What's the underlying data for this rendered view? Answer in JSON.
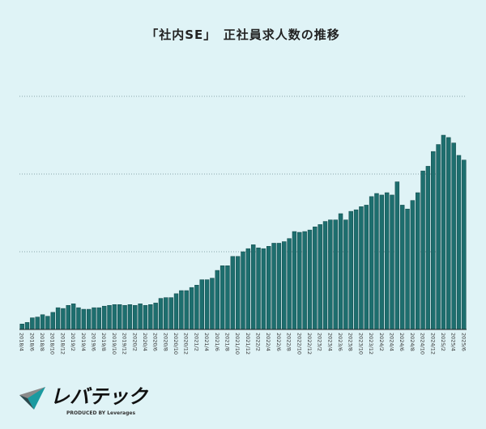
{
  "chart_data": {
    "type": "bar",
    "title": "「社内SE」　正社員求人数の推移",
    "xlabel": "",
    "ylabel": "",
    "y_tick_labels_shown": false,
    "grid": "horizontal dotted",
    "bar_color": "#1d6e6e",
    "background_color": "#dff3f6",
    "ylim": [
      0,
      3.1
    ],
    "categories": [
      "2018/4",
      "2018/5",
      "2018/6",
      "2018/7",
      "2018/8",
      "2018/9",
      "2018/10",
      "2018/11",
      "2018/12",
      "2019/1",
      "2019/2",
      "2019/3",
      "2019/4",
      "2019/5",
      "2019/6",
      "2019/7",
      "2019/8",
      "2019/9",
      "2019/10",
      "2019/11",
      "2019/12",
      "2020/1",
      "2020/2",
      "2020/3",
      "2020/4",
      "2020/5",
      "2020/6",
      "2020/7",
      "2020/8",
      "2020/9",
      "2020/10",
      "2020/11",
      "2020/12",
      "2021/1",
      "2021/2",
      "2021/3",
      "2021/4",
      "2021/5",
      "2021/6",
      "2021/7",
      "2021/8",
      "2021/9",
      "2021/10",
      "2021/11",
      "2021/12",
      "2022/1",
      "2022/2",
      "2022/3",
      "2022/4",
      "2022/5",
      "2022/6",
      "2022/7",
      "2022/8",
      "2022/9",
      "2022/10",
      "2022/11",
      "2022/12",
      "2023/1",
      "2023/2",
      "2023/3",
      "2023/4",
      "2023/5",
      "2023/6",
      "2023/7",
      "2023/8",
      "2023/9",
      "2023/10",
      "2023/11",
      "2023/12",
      "2024/1",
      "2024/2",
      "2024/3",
      "2024/4",
      "2024/5",
      "2024/6",
      "2024/7",
      "2024/8",
      "2024/9",
      "2024/10",
      "2024/11",
      "2024/12",
      "2025/1",
      "2025/2",
      "2025/3",
      "2025/4",
      "2025/5",
      "2025/6"
    ],
    "values": [
      0.07,
      0.09,
      0.15,
      0.16,
      0.19,
      0.17,
      0.22,
      0.28,
      0.27,
      0.31,
      0.33,
      0.28,
      0.26,
      0.26,
      0.28,
      0.28,
      0.3,
      0.31,
      0.32,
      0.32,
      0.31,
      0.32,
      0.31,
      0.33,
      0.31,
      0.32,
      0.34,
      0.4,
      0.41,
      0.41,
      0.46,
      0.5,
      0.5,
      0.54,
      0.57,
      0.64,
      0.64,
      0.66,
      0.76,
      0.82,
      0.82,
      0.94,
      0.94,
      1.0,
      1.04,
      1.09,
      1.05,
      1.04,
      1.07,
      1.11,
      1.11,
      1.13,
      1.17,
      1.26,
      1.25,
      1.26,
      1.28,
      1.32,
      1.35,
      1.39,
      1.41,
      1.41,
      1.49,
      1.41,
      1.52,
      1.54,
      1.58,
      1.6,
      1.71,
      1.75,
      1.73,
      1.76,
      1.73,
      1.9,
      1.6,
      1.55,
      1.66,
      1.76,
      2.04,
      2.1,
      2.29,
      2.38,
      2.5,
      2.47,
      2.4,
      2.24,
      2.18
    ],
    "gridlines": [
      1,
      2,
      3
    ],
    "tick_label_every": 2
  },
  "logo": {
    "name": "レバテック",
    "sub": "PRODUCED BY Leverages"
  }
}
